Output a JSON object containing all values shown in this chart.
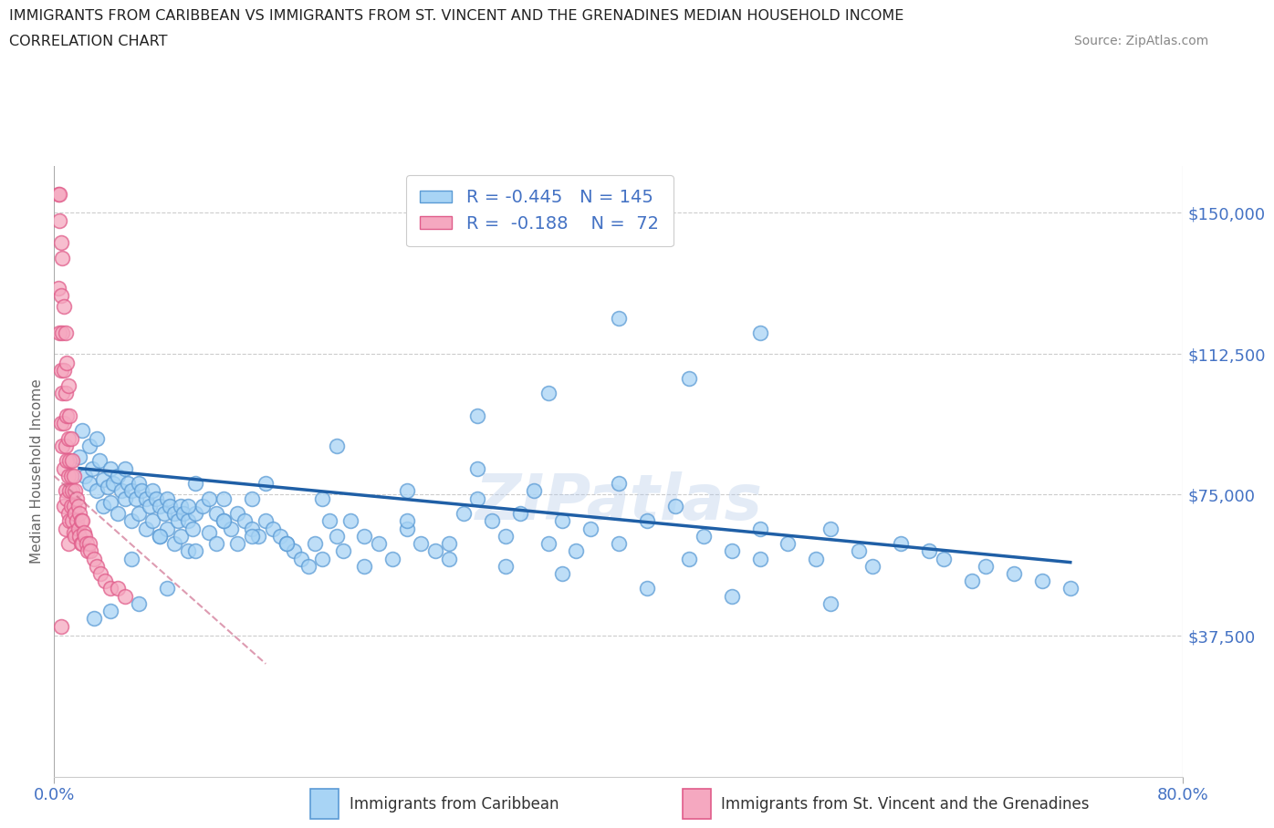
{
  "title_line1": "IMMIGRANTS FROM CARIBBEAN VS IMMIGRANTS FROM ST. VINCENT AND THE GRENADINES MEDIAN HOUSEHOLD INCOME",
  "title_line2": "CORRELATION CHART",
  "source_text": "Source: ZipAtlas.com",
  "ylabel": "Median Household Income",
  "xlim": [
    0.0,
    0.8
  ],
  "ylim": [
    0,
    162500
  ],
  "yticks": [
    37500,
    75000,
    112500,
    150000
  ],
  "ytick_labels": [
    "$37,500",
    "$75,000",
    "$112,500",
    "$150,000"
  ],
  "xticks": [
    0.0,
    0.8
  ],
  "xtick_labels": [
    "0.0%",
    "80.0%"
  ],
  "watermark_text": "ZIPatlas",
  "legend_label1": "Immigrants from Caribbean",
  "legend_label2": "Immigrants from St. Vincent and the Grenadines",
  "R1": -0.445,
  "N1": 145,
  "R2": -0.188,
  "N2": 72,
  "color1_face": "#a8d4f5",
  "color1_edge": "#5b9bd5",
  "color2_face": "#f5a8c0",
  "color2_edge": "#e05c8a",
  "trend1_color": "#1f5fa6",
  "trend2_color": "#cc6688",
  "blue_x": [
    0.018,
    0.02,
    0.022,
    0.025,
    0.025,
    0.027,
    0.03,
    0.03,
    0.032,
    0.035,
    0.035,
    0.038,
    0.04,
    0.04,
    0.042,
    0.045,
    0.045,
    0.048,
    0.05,
    0.05,
    0.052,
    0.055,
    0.055,
    0.058,
    0.06,
    0.06,
    0.062,
    0.065,
    0.065,
    0.068,
    0.07,
    0.07,
    0.072,
    0.075,
    0.075,
    0.078,
    0.08,
    0.08,
    0.082,
    0.085,
    0.085,
    0.088,
    0.09,
    0.09,
    0.092,
    0.095,
    0.095,
    0.098,
    0.1,
    0.1,
    0.105,
    0.11,
    0.11,
    0.115,
    0.115,
    0.12,
    0.12,
    0.125,
    0.13,
    0.13,
    0.135,
    0.14,
    0.14,
    0.145,
    0.15,
    0.155,
    0.16,
    0.165,
    0.17,
    0.175,
    0.18,
    0.185,
    0.19,
    0.195,
    0.2,
    0.205,
    0.21,
    0.22,
    0.23,
    0.24,
    0.25,
    0.26,
    0.27,
    0.28,
    0.29,
    0.3,
    0.31,
    0.32,
    0.33,
    0.34,
    0.35,
    0.36,
    0.37,
    0.38,
    0.4,
    0.4,
    0.42,
    0.44,
    0.45,
    0.46,
    0.48,
    0.5,
    0.5,
    0.52,
    0.54,
    0.55,
    0.57,
    0.58,
    0.6,
    0.62,
    0.63,
    0.65,
    0.66,
    0.68,
    0.7,
    0.72,
    0.3,
    0.35,
    0.4,
    0.45,
    0.5,
    0.3,
    0.25,
    0.2,
    0.15,
    0.1,
    0.08,
    0.06,
    0.04,
    0.028,
    0.055,
    0.075,
    0.095,
    0.12,
    0.14,
    0.165,
    0.19,
    0.22,
    0.25,
    0.28,
    0.32,
    0.36,
    0.42,
    0.48,
    0.55
  ],
  "blue_y": [
    85000,
    92000,
    80000,
    88000,
    78000,
    82000,
    90000,
    76000,
    84000,
    79000,
    72000,
    77000,
    82000,
    73000,
    78000,
    80000,
    70000,
    76000,
    82000,
    74000,
    78000,
    76000,
    68000,
    74000,
    78000,
    70000,
    76000,
    74000,
    66000,
    72000,
    76000,
    68000,
    74000,
    72000,
    64000,
    70000,
    74000,
    66000,
    72000,
    70000,
    62000,
    68000,
    72000,
    64000,
    70000,
    68000,
    60000,
    66000,
    70000,
    78000,
    72000,
    74000,
    65000,
    70000,
    62000,
    68000,
    74000,
    66000,
    70000,
    62000,
    68000,
    66000,
    74000,
    64000,
    68000,
    66000,
    64000,
    62000,
    60000,
    58000,
    56000,
    62000,
    74000,
    68000,
    64000,
    60000,
    68000,
    64000,
    62000,
    58000,
    66000,
    62000,
    60000,
    58000,
    70000,
    74000,
    68000,
    64000,
    70000,
    76000,
    62000,
    68000,
    60000,
    66000,
    78000,
    62000,
    68000,
    72000,
    58000,
    64000,
    60000,
    66000,
    58000,
    62000,
    58000,
    66000,
    60000,
    56000,
    62000,
    60000,
    58000,
    52000,
    56000,
    54000,
    52000,
    50000,
    96000,
    102000,
    122000,
    106000,
    118000,
    82000,
    76000,
    88000,
    78000,
    60000,
    50000,
    46000,
    44000,
    42000,
    58000,
    64000,
    72000,
    68000,
    64000,
    62000,
    58000,
    56000,
    68000,
    62000,
    56000,
    54000,
    50000,
    48000,
    46000
  ],
  "pink_x": [
    0.003,
    0.004,
    0.004,
    0.005,
    0.005,
    0.005,
    0.005,
    0.006,
    0.006,
    0.006,
    0.006,
    0.007,
    0.007,
    0.007,
    0.007,
    0.007,
    0.008,
    0.008,
    0.008,
    0.008,
    0.008,
    0.009,
    0.009,
    0.009,
    0.009,
    0.01,
    0.01,
    0.01,
    0.01,
    0.01,
    0.011,
    0.011,
    0.011,
    0.011,
    0.012,
    0.012,
    0.012,
    0.013,
    0.013,
    0.013,
    0.014,
    0.014,
    0.014,
    0.015,
    0.015,
    0.015,
    0.016,
    0.016,
    0.017,
    0.017,
    0.018,
    0.018,
    0.019,
    0.019,
    0.02,
    0.02,
    0.021,
    0.022,
    0.023,
    0.024,
    0.025,
    0.026,
    0.028,
    0.03,
    0.033,
    0.036,
    0.04,
    0.045,
    0.05,
    0.003,
    0.004,
    0.005
  ],
  "pink_y": [
    130000,
    148000,
    118000,
    142000,
    128000,
    108000,
    94000,
    138000,
    118000,
    102000,
    88000,
    125000,
    108000,
    94000,
    82000,
    72000,
    118000,
    102000,
    88000,
    76000,
    66000,
    110000,
    96000,
    84000,
    74000,
    104000,
    90000,
    80000,
    70000,
    62000,
    96000,
    84000,
    76000,
    68000,
    90000,
    80000,
    72000,
    84000,
    76000,
    68000,
    80000,
    72000,
    65000,
    76000,
    70000,
    64000,
    74000,
    68000,
    72000,
    66000,
    70000,
    64000,
    68000,
    62000,
    68000,
    62000,
    65000,
    64000,
    62000,
    60000,
    62000,
    60000,
    58000,
    56000,
    54000,
    52000,
    50000,
    50000,
    48000,
    155000,
    155000,
    40000
  ]
}
